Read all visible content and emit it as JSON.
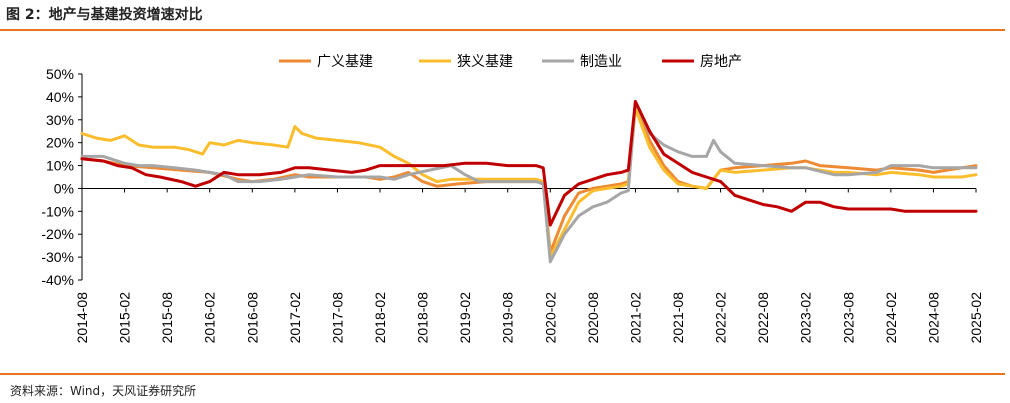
{
  "figure_title": "图 2：地产与基建投资增速对比",
  "source": "资料来源：Wind，天风证券研究所",
  "chart_data": {
    "type": "line",
    "title": "",
    "ylim": [
      -40,
      50
    ],
    "y_ticks": [
      "50%",
      "40%",
      "30%",
      "20%",
      "10%",
      "0%",
      "-10%",
      "-20%",
      "-30%",
      "-40%"
    ],
    "x_ticks": [
      "2014-08",
      "2015-02",
      "2015-08",
      "2016-02",
      "2016-08",
      "2017-02",
      "2017-08",
      "2018-02",
      "2018-08",
      "2019-02",
      "2019-08",
      "2020-02",
      "2020-08",
      "2021-02",
      "2021-08",
      "2022-02",
      "2022-08",
      "2023-02",
      "2023-08",
      "2024-02",
      "2024-08",
      "2025-02"
    ],
    "legend_position": "top",
    "series": [
      {
        "name": "广义基建",
        "color": "#ee8a33",
        "points": [
          [
            "2014-08",
            13
          ],
          [
            "2014-11",
            12
          ],
          [
            "2015-02",
            10
          ],
          [
            "2015-06",
            9
          ],
          [
            "2015-10",
            8
          ],
          [
            "2016-02",
            7
          ],
          [
            "2016-06",
            4
          ],
          [
            "2016-08",
            3
          ],
          [
            "2016-11",
            4
          ],
          [
            "2017-02",
            6
          ],
          [
            "2017-04",
            5
          ],
          [
            "2017-08",
            5
          ],
          [
            "2017-12",
            5
          ],
          [
            "2018-02",
            4
          ],
          [
            "2018-04",
            5
          ],
          [
            "2018-06",
            7
          ],
          [
            "2018-08",
            3
          ],
          [
            "2018-10",
            1
          ],
          [
            "2019-01",
            2
          ],
          [
            "2019-05",
            3
          ],
          [
            "2019-08",
            3
          ],
          [
            "2019-12",
            3
          ],
          [
            "2020-01",
            3
          ],
          [
            "2020-02",
            -28
          ],
          [
            "2020-04",
            -12
          ],
          [
            "2020-06",
            -2
          ],
          [
            "2020-08",
            0
          ],
          [
            "2020-10",
            1
          ],
          [
            "2020-12",
            2
          ],
          [
            "2021-01",
            3
          ],
          [
            "2021-02",
            36
          ],
          [
            "2021-04",
            21
          ],
          [
            "2021-06",
            10
          ],
          [
            "2021-08",
            3
          ],
          [
            "2021-10",
            1
          ],
          [
            "2021-12",
            0
          ],
          [
            "2022-02",
            8
          ],
          [
            "2022-04",
            9
          ],
          [
            "2022-08",
            10
          ],
          [
            "2022-12",
            11
          ],
          [
            "2023-02",
            12
          ],
          [
            "2023-04",
            10
          ],
          [
            "2023-08",
            9
          ],
          [
            "2023-12",
            8
          ],
          [
            "2024-02",
            9
          ],
          [
            "2024-06",
            8
          ],
          [
            "2024-08",
            7
          ],
          [
            "2024-12",
            9
          ],
          [
            "2025-02",
            10
          ]
        ]
      },
      {
        "name": "狭义基建",
        "color": "#fbbd2c",
        "points": [
          [
            "2014-08",
            24
          ],
          [
            "2014-10",
            22
          ],
          [
            "2014-12",
            21
          ],
          [
            "2015-02",
            23
          ],
          [
            "2015-04",
            19
          ],
          [
            "2015-06",
            18
          ],
          [
            "2015-09",
            18
          ],
          [
            "2015-11",
            17
          ],
          [
            "2016-01",
            15
          ],
          [
            "2016-02",
            20
          ],
          [
            "2016-04",
            19
          ],
          [
            "2016-06",
            21
          ],
          [
            "2016-08",
            20
          ],
          [
            "2016-11",
            19
          ],
          [
            "2017-01",
            18
          ],
          [
            "2017-02",
            27
          ],
          [
            "2017-03",
            24
          ],
          [
            "2017-05",
            22
          ],
          [
            "2017-08",
            21
          ],
          [
            "2017-11",
            20
          ],
          [
            "2018-02",
            18
          ],
          [
            "2018-04",
            14
          ],
          [
            "2018-06",
            11
          ],
          [
            "2018-08",
            6
          ],
          [
            "2018-10",
            3
          ],
          [
            "2018-12",
            4
          ],
          [
            "2019-03",
            4
          ],
          [
            "2019-06",
            4
          ],
          [
            "2019-08",
            4
          ],
          [
            "2019-12",
            4
          ],
          [
            "2020-01",
            3
          ],
          [
            "2020-02",
            -30
          ],
          [
            "2020-04",
            -18
          ],
          [
            "2020-06",
            -6
          ],
          [
            "2020-08",
            -1
          ],
          [
            "2020-10",
            0
          ],
          [
            "2020-12",
            1
          ],
          [
            "2021-01",
            2
          ],
          [
            "2021-02",
            35
          ],
          [
            "2021-04",
            18
          ],
          [
            "2021-06",
            8
          ],
          [
            "2021-08",
            2
          ],
          [
            "2021-10",
            1
          ],
          [
            "2021-12",
            0
          ],
          [
            "2022-02",
            8
          ],
          [
            "2022-04",
            7
          ],
          [
            "2022-08",
            8
          ],
          [
            "2022-12",
            9
          ],
          [
            "2023-02",
            9
          ],
          [
            "2023-06",
            7
          ],
          [
            "2023-08",
            7
          ],
          [
            "2023-12",
            6
          ],
          [
            "2024-02",
            7
          ],
          [
            "2024-06",
            6
          ],
          [
            "2024-08",
            5
          ],
          [
            "2024-12",
            5
          ],
          [
            "2025-02",
            6
          ]
        ]
      },
      {
        "name": "制造业",
        "color": "#a6a6a6",
        "points": [
          [
            "2014-08",
            14
          ],
          [
            "2014-11",
            14
          ],
          [
            "2015-02",
            11
          ],
          [
            "2015-04",
            10
          ],
          [
            "2015-06",
            10
          ],
          [
            "2015-09",
            9
          ],
          [
            "2015-12",
            8
          ],
          [
            "2016-02",
            7
          ],
          [
            "2016-04",
            6
          ],
          [
            "2016-06",
            3
          ],
          [
            "2016-09",
            3
          ],
          [
            "2016-12",
            4
          ],
          [
            "2017-02",
            5
          ],
          [
            "2017-04",
            6
          ],
          [
            "2017-08",
            5
          ],
          [
            "2017-12",
            5
          ],
          [
            "2018-02",
            5
          ],
          [
            "2018-04",
            4
          ],
          [
            "2018-06",
            6
          ],
          [
            "2018-09",
            8
          ],
          [
            "2018-12",
            10
          ],
          [
            "2019-02",
            6
          ],
          [
            "2019-04",
            3
          ],
          [
            "2019-06",
            3
          ],
          [
            "2019-08",
            3
          ],
          [
            "2019-12",
            3
          ],
          [
            "2020-01",
            2
          ],
          [
            "2020-02",
            -32
          ],
          [
            "2020-04",
            -20
          ],
          [
            "2020-06",
            -12
          ],
          [
            "2020-08",
            -8
          ],
          [
            "2020-10",
            -6
          ],
          [
            "2020-12",
            -2
          ],
          [
            "2021-01",
            -1
          ],
          [
            "2021-02",
            38
          ],
          [
            "2021-04",
            24
          ],
          [
            "2021-06",
            19
          ],
          [
            "2021-08",
            16
          ],
          [
            "2021-10",
            14
          ],
          [
            "2021-12",
            14
          ],
          [
            "2022-01",
            21
          ],
          [
            "2022-02",
            16
          ],
          [
            "2022-04",
            11
          ],
          [
            "2022-08",
            10
          ],
          [
            "2022-12",
            9
          ],
          [
            "2023-02",
            9
          ],
          [
            "2023-06",
            6
          ],
          [
            "2023-08",
            6
          ],
          [
            "2023-12",
            7
          ],
          [
            "2024-02",
            10
          ],
          [
            "2024-06",
            10
          ],
          [
            "2024-08",
            9
          ],
          [
            "2024-12",
            9
          ],
          [
            "2025-02",
            9
          ]
        ]
      },
      {
        "name": "房地产",
        "color": "#c00000",
        "points": [
          [
            "2014-08",
            13
          ],
          [
            "2014-11",
            12
          ],
          [
            "2015-01",
            10
          ],
          [
            "2015-03",
            9
          ],
          [
            "2015-05",
            6
          ],
          [
            "2015-07",
            5
          ],
          [
            "2015-10",
            3
          ],
          [
            "2015-12",
            1
          ],
          [
            "2016-02",
            3
          ],
          [
            "2016-04",
            7
          ],
          [
            "2016-06",
            6
          ],
          [
            "2016-09",
            6
          ],
          [
            "2016-12",
            7
          ],
          [
            "2017-02",
            9
          ],
          [
            "2017-04",
            9
          ],
          [
            "2017-07",
            8
          ],
          [
            "2017-10",
            7
          ],
          [
            "2017-12",
            8
          ],
          [
            "2018-02",
            10
          ],
          [
            "2018-05",
            10
          ],
          [
            "2018-08",
            10
          ],
          [
            "2018-11",
            10
          ],
          [
            "2019-02",
            11
          ],
          [
            "2019-05",
            11
          ],
          [
            "2019-08",
            10
          ],
          [
            "2019-12",
            10
          ],
          [
            "2020-01",
            9
          ],
          [
            "2020-02",
            -16
          ],
          [
            "2020-04",
            -3
          ],
          [
            "2020-06",
            2
          ],
          [
            "2020-08",
            4
          ],
          [
            "2020-10",
            6
          ],
          [
            "2020-12",
            7
          ],
          [
            "2021-01",
            8
          ],
          [
            "2021-02",
            38
          ],
          [
            "2021-04",
            25
          ],
          [
            "2021-06",
            15
          ],
          [
            "2021-08",
            11
          ],
          [
            "2021-10",
            7
          ],
          [
            "2021-12",
            5
          ],
          [
            "2022-01",
            4
          ],
          [
            "2022-02",
            3
          ],
          [
            "2022-04",
            -3
          ],
          [
            "2022-06",
            -5
          ],
          [
            "2022-08",
            -7
          ],
          [
            "2022-10",
            -8
          ],
          [
            "2022-12",
            -10
          ],
          [
            "2023-02",
            -6
          ],
          [
            "2023-04",
            -6
          ],
          [
            "2023-06",
            -8
          ],
          [
            "2023-08",
            -9
          ],
          [
            "2023-12",
            -9
          ],
          [
            "2024-02",
            -9
          ],
          [
            "2024-04",
            -10
          ],
          [
            "2024-08",
            -10
          ],
          [
            "2024-12",
            -10
          ],
          [
            "2025-02",
            -10
          ]
        ]
      }
    ]
  }
}
